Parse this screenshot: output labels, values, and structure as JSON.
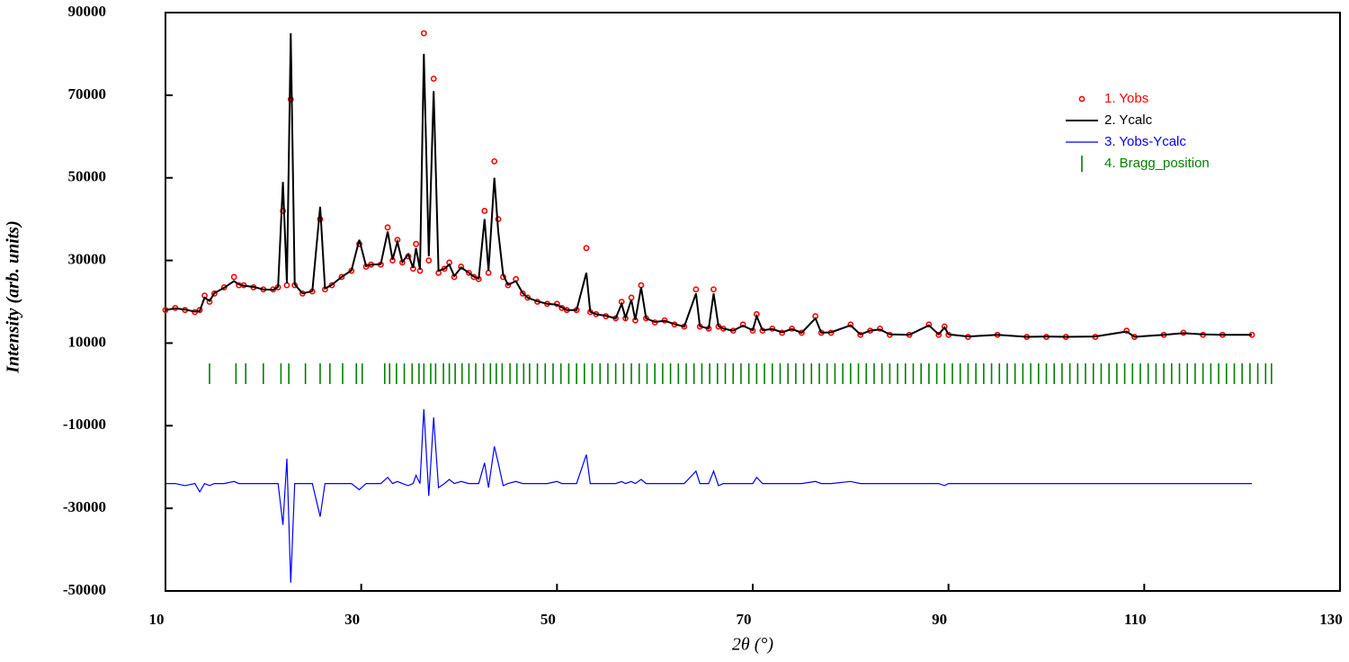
{
  "chart_data": {
    "type": "line",
    "x_label": "2θ (°)",
    "y_label": "Intensity (arb. units)",
    "x": [
      10,
      11,
      12,
      13,
      13.5,
      14,
      14.5,
      15,
      16,
      17,
      17.5,
      18,
      19,
      20,
      21,
      21.5,
      22,
      22.4,
      22.8,
      23.2,
      24,
      25,
      25.8,
      26.3,
      27,
      28,
      29,
      29.8,
      30.5,
      31,
      32,
      32.7,
      33.2,
      33.7,
      34.2,
      34.8,
      35.3,
      35.6,
      36,
      36.4,
      36.9,
      37.4,
      37.9,
      38.5,
      39,
      39.5,
      40.2,
      41,
      41.5,
      42,
      42.6,
      43,
      43.6,
      44,
      44.5,
      45,
      45.8,
      46.5,
      47,
      48,
      49,
      50,
      50.5,
      51,
      52,
      53,
      53.4,
      54,
      55,
      56,
      56.6,
      57,
      57.6,
      58,
      58.6,
      59.1,
      60,
      61,
      62,
      63,
      64.2,
      64.6,
      65.5,
      66,
      66.5,
      67,
      68,
      69,
      70,
      70.4,
      71,
      72,
      73,
      74,
      75,
      76.4,
      77,
      78,
      80,
      81,
      82,
      83,
      84,
      86,
      88,
      89,
      89.6,
      90,
      92,
      95,
      98,
      100,
      102,
      105,
      108.2,
      109,
      112,
      114,
      116,
      118,
      121
    ],
    "series": [
      {
        "name": "1. Yobs",
        "color": "#ff0000",
        "marker": "circle",
        "values": [
          18000,
          18500,
          18000,
          17500,
          18000,
          21500,
          20000,
          22000,
          23500,
          26000,
          24000,
          24000,
          23500,
          23000,
          23000,
          23500,
          42000,
          24000,
          69000,
          24000,
          22000,
          22500,
          40000,
          23000,
          24000,
          26000,
          27500,
          34000,
          28500,
          29000,
          29000,
          38000,
          30000,
          35000,
          29500,
          31000,
          28000,
          34000,
          27500,
          85000,
          30000,
          74000,
          27000,
          28000,
          29500,
          26000,
          28500,
          27000,
          26000,
          25500,
          42000,
          27000,
          54000,
          40000,
          26000,
          24000,
          25500,
          22000,
          21000,
          20000,
          19500,
          19500,
          18500,
          18000,
          18000,
          33000,
          17500,
          17000,
          16500,
          16000,
          20000,
          16000,
          21000,
          15500,
          24000,
          16000,
          15000,
          15500,
          14500,
          14000,
          23000,
          14000,
          13500,
          23000,
          14000,
          13500,
          13000,
          14500,
          13000,
          17000,
          13000,
          13500,
          12500,
          13500,
          12500,
          16500,
          12500,
          12500,
          14500,
          12000,
          13000,
          13500,
          12000,
          12000,
          14500,
          12000,
          14000,
          12000,
          11500,
          12000,
          11500,
          11500,
          11500,
          11500,
          13000,
          11500,
          12000,
          12500,
          12000,
          12000,
          12000
        ]
      },
      {
        "name": "2. Ycalc",
        "color": "#000000",
        "values": [
          18000,
          18400,
          18100,
          17600,
          17800,
          21000,
          20200,
          22100,
          23400,
          25000,
          24200,
          23900,
          23600,
          23000,
          22900,
          23600,
          49000,
          24500,
          85000,
          24200,
          22000,
          22600,
          43000,
          23200,
          24100,
          26000,
          27600,
          35000,
          28600,
          29000,
          29100,
          37000,
          30200,
          34500,
          29600,
          31500,
          28200,
          33000,
          27800,
          80000,
          31000,
          71000,
          27500,
          28000,
          29000,
          26200,
          28300,
          27000,
          26100,
          25600,
          40000,
          27500,
          50000,
          37000,
          26500,
          24100,
          25000,
          22100,
          21000,
          20100,
          19500,
          19300,
          18600,
          18000,
          18000,
          27000,
          17600,
          17000,
          16600,
          16000,
          19500,
          16100,
          20500,
          15600,
          23500,
          16000,
          15100,
          15400,
          14600,
          14000,
          22000,
          14100,
          13500,
          22000,
          14100,
          13500,
          13000,
          14200,
          13100,
          16500,
          13100,
          13400,
          12600,
          13400,
          12500,
          16000,
          12500,
          12600,
          14300,
          12100,
          13000,
          13300,
          12100,
          12000,
          14300,
          12100,
          13800,
          12100,
          11600,
          12000,
          11500,
          11600,
          11500,
          11600,
          12800,
          11500,
          12000,
          12400,
          12100,
          12000,
          12000
        ]
      },
      {
        "name": "3. Yobs-Ycalc",
        "color": "#0000ff",
        "values": [
          -24000,
          -24000,
          -24500,
          -24000,
          -26000,
          -24000,
          -24500,
          -24000,
          -24000,
          -23500,
          -24000,
          -24000,
          -24000,
          -24000,
          -24000,
          -24000,
          -34000,
          -18000,
          -48000,
          -24000,
          -24000,
          -24000,
          -32000,
          -24000,
          -24000,
          -24000,
          -24000,
          -25500,
          -24000,
          -24000,
          -24000,
          -22500,
          -24000,
          -23500,
          -24000,
          -24500,
          -24000,
          -22000,
          -24000,
          -6000,
          -27000,
          -8000,
          -25000,
          -24000,
          -23000,
          -24000,
          -23500,
          -24000,
          -24000,
          -24000,
          -19000,
          -25000,
          -15000,
          -19000,
          -24500,
          -24000,
          -23500,
          -24000,
          -24000,
          -24000,
          -24000,
          -23500,
          -24000,
          -24000,
          -24000,
          -17000,
          -24000,
          -24000,
          -24000,
          -24000,
          -23500,
          -24000,
          -23500,
          -24000,
          -23000,
          -24000,
          -24000,
          -24000,
          -24000,
          -24000,
          -21000,
          -24000,
          -24000,
          -21000,
          -24500,
          -24000,
          -24000,
          -24000,
          -24000,
          -22500,
          -24000,
          -24000,
          -24000,
          -24000,
          -24000,
          -23500,
          -24000,
          -24000,
          -23500,
          -24000,
          -24000,
          -24000,
          -24000,
          -24000,
          -24000,
          -24000,
          -24500,
          -24000,
          -24000,
          -24000,
          -24000,
          -24000,
          -24000,
          -24000,
          -24000,
          -24000,
          -24000,
          -24000,
          -24000,
          -24000,
          -24000
        ]
      }
    ],
    "bragg": {
      "name": "4. Bragg_position",
      "color": "#008000",
      "positions": [
        14.5,
        17.2,
        18.2,
        20,
        21.8,
        22.6,
        24.3,
        25.8,
        26.8,
        28.1,
        29.5,
        30.1,
        32.4,
        32.9,
        33.6,
        34.4,
        35.2,
        35.9,
        36.4,
        37.1,
        37.6,
        38.4,
        39,
        39.6,
        40.3,
        41,
        41.7,
        42.5,
        43.2,
        43.8,
        44.4,
        45.2,
        45.9,
        46.6,
        47.2,
        48,
        48.8,
        49.6,
        50.4,
        51.2,
        52,
        52.8,
        53.6,
        54.4,
        55.2,
        56,
        56.8,
        57.6,
        58.4,
        59.2,
        60,
        60.8,
        61.6,
        62.4,
        63.2,
        64,
        64.8,
        65.6,
        66.4,
        67.2,
        68,
        68.8,
        69.6,
        70.4,
        71.2,
        72,
        72.8,
        73.6,
        74.4,
        75.2,
        76,
        76.8,
        77.6,
        78.4,
        79.2,
        80,
        80.8,
        81.6,
        82.4,
        83.2,
        84,
        84.8,
        85.6,
        86.4,
        87.2,
        88,
        88.8,
        89.6,
        90.4,
        91.2,
        92,
        92.8,
        93.6,
        94.4,
        95.2,
        96,
        96.8,
        97.6,
        98.4,
        99.2,
        100,
        100.8,
        101.6,
        102.4,
        103.2,
        104,
        104.8,
        105.6,
        106.4,
        107.2,
        108,
        108.8,
        109.6,
        110.4,
        111.2,
        112,
        112.8,
        113.6,
        114.4,
        115.2,
        116,
        116.8,
        117.6,
        118.4,
        119.2,
        120,
        120.8,
        121.6,
        122.4,
        123
      ]
    },
    "xlim": [
      10,
      130
    ],
    "xticks": [
      10,
      30,
      50,
      70,
      90,
      110,
      130
    ],
    "ylim": [
      -50000,
      90000
    ],
    "yticks": [
      -50000,
      -30000,
      -10000,
      10000,
      30000,
      50000,
      70000,
      90000
    ],
    "legend": "upper right"
  }
}
